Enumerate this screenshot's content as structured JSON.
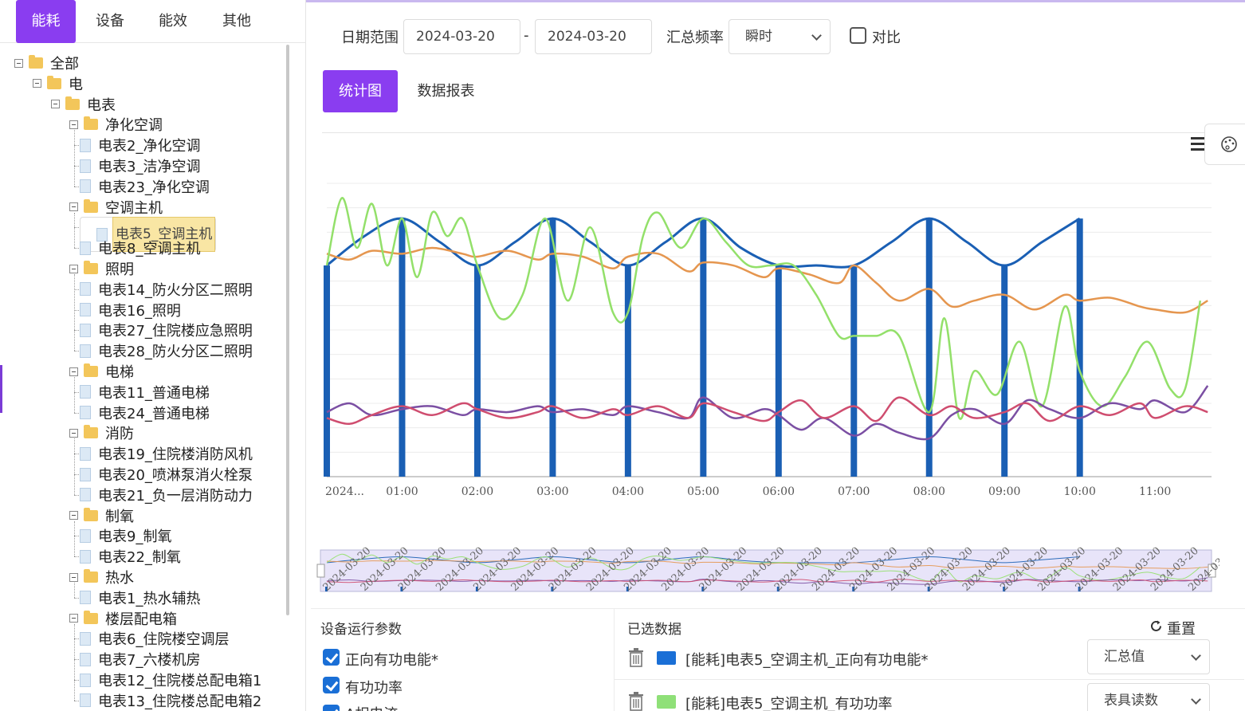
{
  "nav_tabs": [
    {
      "label": "能耗",
      "active": true
    },
    {
      "label": "设备",
      "active": false
    },
    {
      "label": "能效",
      "active": false
    },
    {
      "label": "其他",
      "active": false
    }
  ],
  "tree": [
    {
      "label": "全部",
      "level": 0,
      "type": "folder"
    },
    {
      "label": "电",
      "level": 1,
      "type": "folder"
    },
    {
      "label": "电表",
      "level": 2,
      "type": "folder"
    },
    {
      "label": "净化空调",
      "level": 3,
      "type": "folder"
    },
    {
      "label": "电表2_净化空调",
      "level": 4,
      "type": "file"
    },
    {
      "label": "电表3_洁净空调",
      "level": 4,
      "type": "file"
    },
    {
      "label": "电表23_净化空调",
      "level": 4,
      "type": "file"
    },
    {
      "label": "空调主机",
      "level": 3,
      "type": "folder"
    },
    {
      "label": "电表5_空调主机",
      "level": 4,
      "type": "file",
      "selected": true
    },
    {
      "label": "电表8_空调主机",
      "level": 4,
      "type": "file"
    },
    {
      "label": "照明",
      "level": 3,
      "type": "folder"
    },
    {
      "label": "电表14_防火分区二照明",
      "level": 4,
      "type": "file"
    },
    {
      "label": "电表16_照明",
      "level": 4,
      "type": "file"
    },
    {
      "label": "电表27_住院楼应急照明",
      "level": 4,
      "type": "file"
    },
    {
      "label": "电表28_防火分区二照明",
      "level": 4,
      "type": "file"
    },
    {
      "label": "电梯",
      "level": 3,
      "type": "folder"
    },
    {
      "label": "电表11_普通电梯",
      "level": 4,
      "type": "file"
    },
    {
      "label": "电表24_普通电梯",
      "level": 4,
      "type": "file"
    },
    {
      "label": "消防",
      "level": 3,
      "type": "folder"
    },
    {
      "label": "电表19_住院楼消防风机",
      "level": 4,
      "type": "file"
    },
    {
      "label": "电表20_喷淋泵消火栓泵",
      "level": 4,
      "type": "file"
    },
    {
      "label": "电表21_负一层消防动力",
      "level": 4,
      "type": "file"
    },
    {
      "label": "制氧",
      "level": 3,
      "type": "folder"
    },
    {
      "label": "电表9_制氧",
      "level": 4,
      "type": "file"
    },
    {
      "label": "电表22_制氧",
      "level": 4,
      "type": "file"
    },
    {
      "label": "热水",
      "level": 3,
      "type": "folder"
    },
    {
      "label": "电表1_热水辅热",
      "level": 4,
      "type": "file"
    },
    {
      "label": "楼层配电箱",
      "level": 3,
      "type": "folder"
    },
    {
      "label": "电表6_住院楼空调层",
      "level": 4,
      "type": "file"
    },
    {
      "label": "电表7_六楼机房",
      "level": 4,
      "type": "file"
    },
    {
      "label": "电表12_住院楼总配电箱1",
      "level": 4,
      "type": "file"
    },
    {
      "label": "电表13_住院楼总配电箱2",
      "level": 4,
      "type": "file"
    }
  ],
  "filters": {
    "date_range_label": "日期范围",
    "start_date": "2024-03-20",
    "date_separator": "-",
    "end_date": "2024-03-20",
    "freq_label": "汇总频率",
    "freq_value": "瞬时",
    "compare_label": "对比"
  },
  "content_tabs": [
    {
      "label": "统计图",
      "active": true
    },
    {
      "label": "数据报表",
      "active": false
    }
  ],
  "chart_data": {
    "type": "line",
    "x_tick_labels": [
      "2024...",
      "01:00",
      "02:00",
      "03:00",
      "04:00",
      "05:00",
      "06:00",
      "07:00",
      "08:00",
      "09:00",
      "10:00",
      "11:00"
    ],
    "x_range_hours": [
      0,
      11.75
    ],
    "grid": true,
    "legend": "none",
    "zoom_slider_labels": "2024-03-20",
    "series": [
      {
        "color": "#1a5fb4",
        "style": "bar",
        "x": [
          0,
          1,
          2,
          3,
          4,
          5,
          6,
          7,
          8,
          9,
          10
        ],
        "values": [
          0.72,
          0.88,
          0.72,
          0.88,
          0.72,
          0.88,
          0.72,
          0.72,
          0.88,
          0.72,
          0.88
        ]
      },
      {
        "color": "#1a5fb4",
        "style": "line",
        "x": [
          0,
          0.5,
          1,
          1.5,
          2,
          2.5,
          3,
          3.5,
          4,
          4.5,
          5,
          5.5,
          6,
          6.5,
          7,
          7.5,
          8,
          8.5,
          9,
          9.5,
          10
        ],
        "values": [
          0.72,
          0.82,
          0.88,
          0.8,
          0.72,
          0.8,
          0.88,
          0.8,
          0.72,
          0.8,
          0.88,
          0.78,
          0.72,
          0.72,
          0.72,
          0.8,
          0.88,
          0.8,
          0.72,
          0.8,
          0.88
        ]
      },
      {
        "color": "#e5964f",
        "style": "line",
        "x": [
          0,
          0.3,
          0.6,
          1,
          1.4,
          1.8,
          2,
          2.4,
          2.8,
          3,
          3.4,
          3.8,
          4,
          4.4,
          4.8,
          5,
          5.4,
          5.8,
          6,
          6.4,
          6.8,
          7,
          7.3,
          7.6,
          8,
          8.3,
          8.6,
          9,
          9.4,
          9.8,
          10,
          10.4,
          10.8,
          11,
          11.4,
          11.7
        ],
        "values": [
          0.76,
          0.74,
          0.77,
          0.76,
          0.78,
          0.76,
          0.75,
          0.77,
          0.74,
          0.76,
          0.75,
          0.71,
          0.75,
          0.76,
          0.7,
          0.73,
          0.72,
          0.68,
          0.71,
          0.69,
          0.66,
          0.72,
          0.66,
          0.6,
          0.64,
          0.58,
          0.6,
          0.62,
          0.57,
          0.62,
          0.6,
          0.61,
          0.58,
          0.57,
          0.56,
          0.6
        ]
      },
      {
        "color": "#93e06a",
        "style": "line",
        "x": [
          0,
          0.2,
          0.4,
          0.6,
          0.8,
          1,
          1.2,
          1.4,
          1.6,
          1.8,
          2,
          2.3,
          2.6,
          2.9,
          3.2,
          3.5,
          3.8,
          4,
          4.2,
          4.4,
          4.7,
          5,
          5.3,
          5.6,
          5.9,
          6.2,
          6.5,
          6.8,
          7,
          7.3,
          7.6,
          8,
          8.2,
          8.4,
          8.6,
          8.9,
          9.2,
          9.5,
          9.8,
          10,
          10.3,
          10.6,
          10.9,
          11.2,
          11.4,
          11.6
        ],
        "values": [
          0.72,
          0.95,
          0.78,
          0.93,
          0.72,
          0.88,
          0.68,
          0.9,
          0.82,
          0.88,
          0.72,
          0.54,
          0.62,
          0.88,
          0.6,
          0.85,
          0.56,
          0.56,
          0.82,
          0.9,
          0.78,
          0.88,
          0.8,
          0.72,
          0.72,
          0.72,
          0.62,
          0.48,
          0.48,
          0.48,
          0.48,
          0.22,
          0.54,
          0.2,
          0.36,
          0.28,
          0.46,
          0.24,
          0.58,
          0.36,
          0.24,
          0.34,
          0.46,
          0.3,
          0.3,
          0.6
        ]
      },
      {
        "color": "#7b4fa3",
        "style": "line",
        "x": [
          0,
          0.3,
          0.6,
          1,
          1.4,
          1.8,
          2,
          2.4,
          2.8,
          3,
          3.4,
          3.8,
          4,
          4.4,
          4.8,
          5,
          5.4,
          5.8,
          6,
          6.3,
          6.6,
          7,
          7.3,
          7.6,
          8,
          8.3,
          8.6,
          9,
          9.3,
          9.6,
          10,
          10.4,
          10.8,
          11,
          11.4,
          11.7
        ],
        "values": [
          0.22,
          0.25,
          0.21,
          0.23,
          0.24,
          0.21,
          0.23,
          0.22,
          0.24,
          0.22,
          0.23,
          0.21,
          0.24,
          0.22,
          0.2,
          0.27,
          0.2,
          0.23,
          0.21,
          0.16,
          0.2,
          0.14,
          0.18,
          0.15,
          0.13,
          0.21,
          0.23,
          0.18,
          0.26,
          0.23,
          0.2,
          0.25,
          0.23,
          0.26,
          0.22,
          0.31
        ]
      },
      {
        "color": "#cf4d6f",
        "style": "line",
        "x": [
          0,
          0.3,
          0.6,
          1,
          1.4,
          1.8,
          2,
          2.4,
          2.8,
          3,
          3.4,
          3.8,
          4,
          4.4,
          4.8,
          5,
          5.4,
          5.8,
          6,
          6.3,
          6.6,
          7,
          7.3,
          7.6,
          8,
          8.3,
          8.6,
          9,
          9.3,
          9.6,
          10,
          10.4,
          10.8,
          11,
          11.4,
          11.7
        ],
        "values": [
          0.2,
          0.18,
          0.21,
          0.24,
          0.21,
          0.25,
          0.23,
          0.2,
          0.22,
          0.24,
          0.2,
          0.23,
          0.21,
          0.24,
          0.2,
          0.25,
          0.22,
          0.19,
          0.22,
          0.26,
          0.2,
          0.24,
          0.19,
          0.27,
          0.21,
          0.24,
          0.2,
          0.22,
          0.25,
          0.19,
          0.24,
          0.21,
          0.25,
          0.2,
          0.24,
          0.22
        ]
      }
    ]
  },
  "params_panel": {
    "title": "设备运行参数",
    "items": [
      {
        "label": "正向有功电能*",
        "checked": true
      },
      {
        "label": "有功功率",
        "checked": true
      },
      {
        "label": "A相电流",
        "checked": true
      }
    ]
  },
  "selected_panel": {
    "title": "已选数据",
    "reset_label": "重置",
    "rows": [
      {
        "color": "#1a6fd6",
        "label": "[能耗]电表5_空调主机_正向有功电能*",
        "agg": "汇总值"
      },
      {
        "color": "#8fe078",
        "label": "[能耗]电表5_空调主机_有功功率",
        "agg": "表具读数"
      }
    ]
  },
  "icons": {
    "chart_menu": "menu-icon",
    "theme": "palette-icon",
    "reset": "refresh-icon",
    "delete": "trash-icon"
  }
}
